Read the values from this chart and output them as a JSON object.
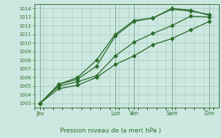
{
  "xlabel": "Pression niveau de la mer( hPa )",
  "ylabel": "",
  "background_color": "#cce8e0",
  "grid_color": "#a8c8c0",
  "line_color": "#2d6e2d",
  "ylim": [
    1002.5,
    1014.5
  ],
  "yticks": [
    1003,
    1004,
    1005,
    1006,
    1007,
    1008,
    1009,
    1010,
    1011,
    1012,
    1013,
    1014
  ],
  "day_labels": [
    "Jeu",
    "Lun",
    "Ven",
    "Sam",
    "Dim"
  ],
  "day_positions": [
    0,
    4,
    5,
    7,
    9
  ],
  "lines": [
    {
      "x": [
        0,
        1,
        2,
        3,
        4,
        5,
        6,
        7,
        8,
        9
      ],
      "y": [
        1003.0,
        1004.7,
        1005.1,
        1006.0,
        1007.5,
        1008.5,
        1009.8,
        1010.5,
        1011.5,
        1012.5
      ]
    },
    {
      "x": [
        0,
        1,
        2,
        3,
        4,
        5,
        6,
        7,
        8,
        9
      ],
      "y": [
        1003.0,
        1005.0,
        1005.5,
        1006.2,
        1008.5,
        1010.1,
        1011.1,
        1012.0,
        1013.1,
        1013.0
      ]
    },
    {
      "x": [
        0,
        1,
        2,
        3,
        4,
        5,
        6,
        7,
        8,
        9
      ],
      "y": [
        1003.0,
        1005.2,
        1006.0,
        1008.0,
        1011.0,
        1012.6,
        1012.9,
        1014.0,
        1013.8,
        1013.2
      ]
    },
    {
      "x": [
        0,
        1,
        2,
        3,
        4,
        5,
        6,
        7,
        8,
        9
      ],
      "y": [
        1003.0,
        1005.2,
        1005.8,
        1007.3,
        1010.8,
        1012.5,
        1012.9,
        1013.9,
        1013.7,
        1013.3
      ]
    }
  ],
  "marker": "D",
  "marker_size": 2.5,
  "line_width": 1.0
}
